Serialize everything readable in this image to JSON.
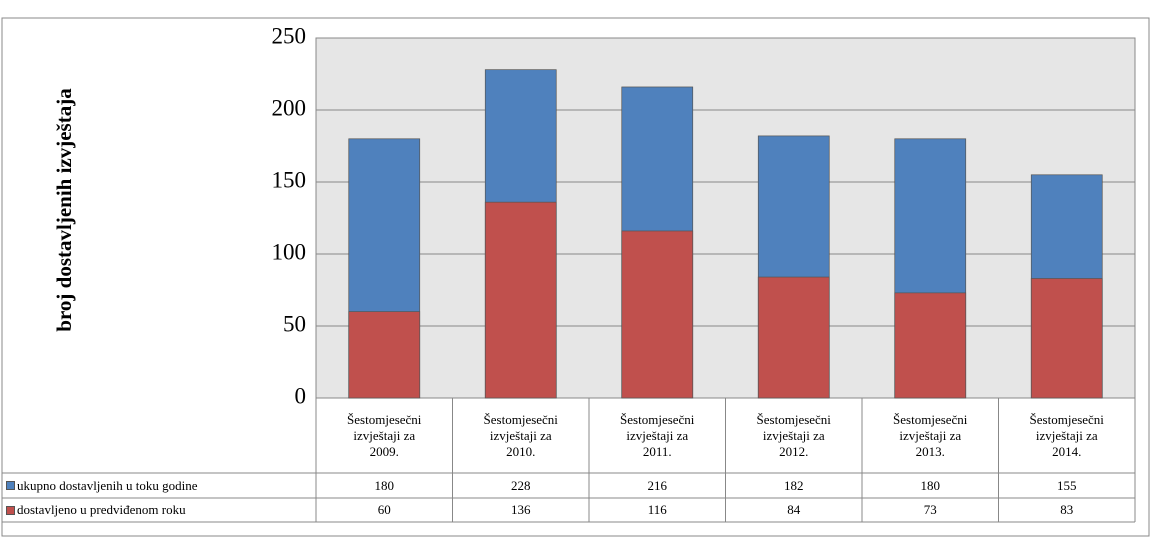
{
  "chart_data": {
    "type": "bar",
    "y_axis_label": "broj dostavljenih izvještaja",
    "categories": [
      "Šestomjesečni izvještaji za 2009.",
      "Šestomjesečni izvještaji za 2010.",
      "Šestomjesečni izvještaji za 2011.",
      "Šestomjesečni izvještaji za 2012.",
      "Šestomjesečni izvještaji za 2013.",
      "Šestomjesečni izvještaji za 2014."
    ],
    "series": [
      {
        "name": "ukupno dostavljenih u toku godine",
        "color": "#4f81bd",
        "values": [
          180,
          228,
          216,
          182,
          180,
          155
        ]
      },
      {
        "name": "dostavljeno u predviđenom roku",
        "color": "#c0504d",
        "values": [
          60,
          136,
          116,
          84,
          73,
          83
        ]
      }
    ],
    "ylim": [
      0,
      250
    ],
    "yticks": [
      0,
      50,
      100,
      150,
      200,
      250
    ],
    "grid": true
  }
}
